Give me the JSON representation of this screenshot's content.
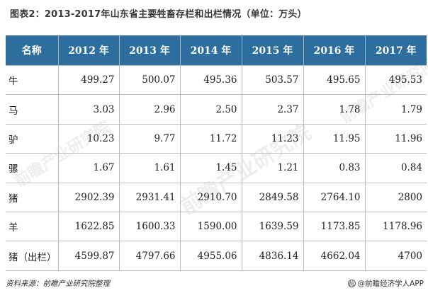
{
  "title": "图表2：2013-2017年山东省主要牲畜存栏和出栏情况（单位：万头）",
  "watermark": "前瞻产业研究院",
  "table": {
    "headers": [
      "名称",
      "2012 年",
      "2013 年",
      "2014 年",
      "2015 年",
      "2016 年",
      "2017 年"
    ],
    "rows": [
      [
        "牛",
        "499.27",
        "500.07",
        "495.36",
        "503.57",
        "495.65",
        "495.53"
      ],
      [
        "马",
        "3.03",
        "2.96",
        "2.50",
        "2.37",
        "1.78",
        "1.79"
      ],
      [
        "驴",
        "10.23",
        "9.77",
        "11.72",
        "11.23",
        "11.95",
        "11.96"
      ],
      [
        "骡",
        "1.67",
        "1.61",
        "1.45",
        "1.21",
        "0.83",
        "0.84"
      ],
      [
        "猪",
        "2902.39",
        "2931.41",
        "2910.70",
        "2849.58",
        "2764.10",
        "2800"
      ],
      [
        "羊",
        "1622.85",
        "1600.33",
        "1590.00",
        "1639.59",
        "1173.85",
        "1178.96"
      ],
      [
        "猪（出栏）",
        "4599.87",
        "4797.66",
        "4955.06",
        "4836.14",
        "4662.04",
        "4700"
      ]
    ]
  },
  "footer": {
    "source": "资料来源：前瞻产业研究院整理",
    "brand": "@前瞻经济学人APP"
  },
  "colors": {
    "header_bg": "#2e6e9e",
    "header_text": "#ffffff",
    "grid": "#bdbdbd"
  },
  "icons": {
    "brand_logo": "qianzhan-logo-icon"
  }
}
